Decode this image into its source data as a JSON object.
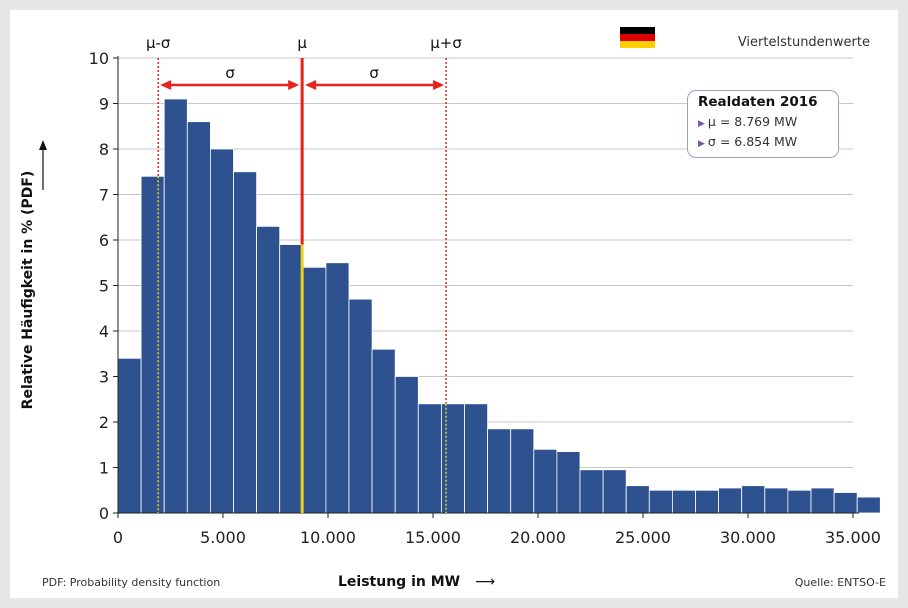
{
  "header": {
    "top_right_label": "Viertelstundenwerte"
  },
  "flag": {
    "name": "germany-flag",
    "colors": [
      "#000000",
      "#dd0000",
      "#ffce00"
    ]
  },
  "infobox": {
    "title": "Realdaten 2016",
    "mu_line": "μ = 8.769 MW",
    "sigma_line": "σ = 6.854 MW"
  },
  "footer": {
    "left_note": "PDF: Probability density function",
    "right_note": "Quelle: ENTSO-E"
  },
  "colors": {
    "bar": "#2e5290",
    "bar_edge": "#1c3a70",
    "marker": "#e8221c",
    "mean_highlight": "#f0d21a",
    "grid": "#c8c8c8"
  },
  "chart_data": {
    "type": "bar",
    "bin_width": 1100,
    "bin_start": 0,
    "values": [
      3.4,
      7.4,
      9.1,
      8.6,
      8.0,
      7.5,
      6.3,
      5.9,
      5.4,
      5.5,
      4.7,
      3.6,
      3.0,
      2.4,
      2.4,
      2.4,
      1.85,
      1.85,
      1.4,
      1.35,
      0.95,
      0.95,
      0.6,
      0.5,
      0.5,
      0.5,
      0.55,
      0.6,
      0.55,
      0.5,
      0.55,
      0.45,
      0.35
    ],
    "xlim": [
      0,
      35000
    ],
    "ylim": [
      0,
      10
    ],
    "x_ticks": [
      "0",
      "5.000",
      "10.000",
      "15.000",
      "20.000",
      "25.000",
      "30.000",
      "35.000"
    ],
    "x_tick_values": [
      0,
      5000,
      10000,
      15000,
      20000,
      25000,
      30000,
      35000
    ],
    "y_ticks": [
      "0",
      "1",
      "2",
      "3",
      "4",
      "5",
      "6",
      "7",
      "8",
      "9",
      "10"
    ],
    "y_tick_values": [
      0,
      1,
      2,
      3,
      4,
      5,
      6,
      7,
      8,
      9,
      10
    ],
    "xlabel": "Leistung in MW",
    "ylabel": "Relative Häufigkeit in % (PDF)",
    "grid": true,
    "markers": {
      "mu": 8769,
      "mu_minus_sigma": 1915,
      "mu_plus_sigma": 15623,
      "mu_label": "μ",
      "mu_minus_sigma_label": "μ-σ",
      "mu_plus_sigma_label": "μ+σ",
      "sigma_label": "σ"
    }
  }
}
